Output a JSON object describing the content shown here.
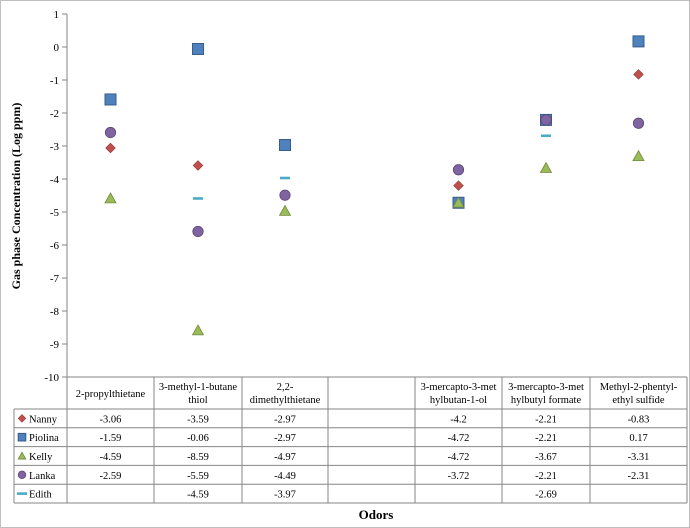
{
  "chart_data": {
    "type": "scatter",
    "xlabel": "Odors",
    "ylabel": "Gas phase Concentration (Log ppm)",
    "ylim": [
      -10,
      1
    ],
    "yticks": [
      1,
      0,
      -1,
      -2,
      -3,
      -4,
      -5,
      -6,
      -7,
      -8,
      -9,
      -10
    ],
    "grid": false,
    "legend_placement": "data-table-left",
    "categories": [
      [
        "2-propylthietane"
      ],
      [
        "3-methyl-1-butane",
        "thiol"
      ],
      [
        "2,2-",
        "dimethylthietane"
      ],
      [
        ""
      ],
      [
        "3-mercapto-3-met",
        "hylbutan-1-ol"
      ],
      [
        "3-mercapto-3-met",
        "hylbutyl formate"
      ],
      [
        "Methyl-2-phentyl-",
        "ethyl sulfide"
      ]
    ],
    "series": [
      {
        "name": "Nanny",
        "marker": "diamond",
        "color": "#c0504d",
        "values": [
          -3.06,
          -3.59,
          -2.97,
          null,
          -4.2,
          -2.21,
          -0.83
        ]
      },
      {
        "name": "Piolina",
        "marker": "square",
        "color": "#4f81bd",
        "values": [
          -1.59,
          -0.06,
          -2.97,
          null,
          -4.72,
          -2.21,
          0.17
        ]
      },
      {
        "name": "Kelly",
        "marker": "triangle",
        "color": "#9bbb59",
        "values": [
          -4.59,
          -8.59,
          -4.97,
          null,
          -4.72,
          -3.67,
          -3.31
        ]
      },
      {
        "name": "Lanka",
        "marker": "circle",
        "color": "#8064a2",
        "values": [
          -2.59,
          -5.59,
          -4.49,
          null,
          -3.72,
          -2.21,
          -2.31
        ]
      },
      {
        "name": "Edith",
        "marker": "dash",
        "color": "#4bacc6",
        "values": [
          null,
          -4.59,
          -3.97,
          null,
          null,
          -2.69,
          null
        ]
      }
    ]
  }
}
